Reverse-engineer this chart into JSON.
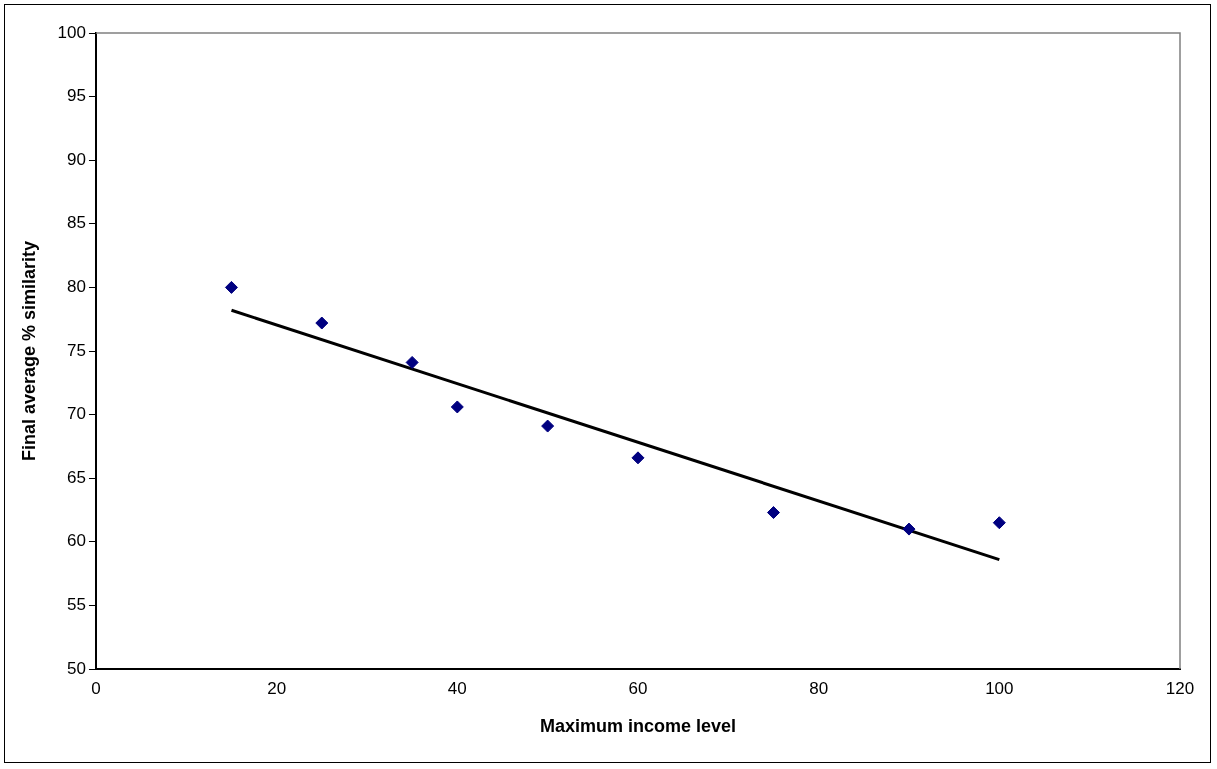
{
  "chart_data": {
    "type": "scatter",
    "xlabel": "Maximum income level",
    "ylabel": "Final average % similarity",
    "series": [
      {
        "color": "#000080",
        "marker": "diamond",
        "x": [
          15,
          25,
          35,
          40,
          50,
          60,
          75,
          90,
          100
        ],
        "values": [
          80,
          77.2,
          74.1,
          70.6,
          69.1,
          66.6,
          62.3,
          61.0,
          61.5
        ]
      },
      {
        "type": "line",
        "marker": "none",
        "color": "#000000",
        "x": [
          15,
          100
        ],
        "values": [
          78.2,
          58.6
        ]
      }
    ],
    "xlim": [
      0,
      120
    ],
    "xticks": [
      0,
      20,
      40,
      60,
      80,
      100,
      120
    ],
    "ylim": [
      50,
      100
    ],
    "yticks": [
      50,
      55,
      60,
      65,
      70,
      75,
      80,
      85,
      90,
      95,
      100
    ],
    "grid": false,
    "legend": false
  }
}
